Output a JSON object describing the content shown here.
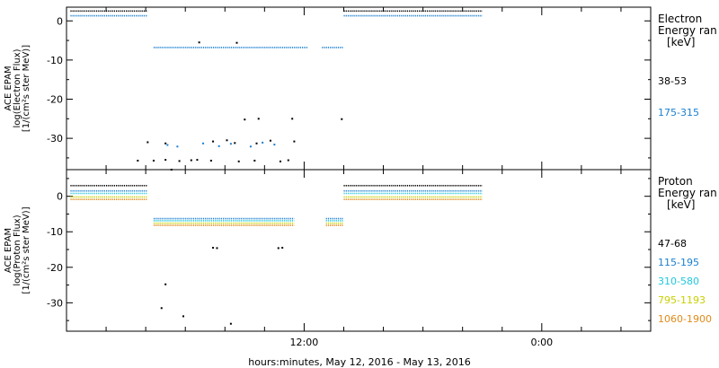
{
  "figure": {
    "xlabel": "hours:minutes, May 12, 2016 - May 13, 2016",
    "xticks": [
      {
        "label": "12:00",
        "hour": 12
      },
      {
        "label": "0:00",
        "hour": 24
      }
    ],
    "x_range_hours": [
      0,
      29.5
    ],
    "minor_tick_every_hours": 2
  },
  "chart_data": [
    {
      "type": "scatter",
      "ylabel": [
        "ACE EPAM",
        "log(Electron Flux)",
        "[1/(cm²s ster MeV)]"
      ],
      "ylim": [
        -38,
        3.5
      ],
      "yticks": [
        0,
        -10,
        -20,
        -30
      ],
      "legend": {
        "title": [
          "Electron",
          "Energy ran",
          "[keV]"
        ],
        "entries": [
          {
            "label": "38-53",
            "color": "#000000"
          },
          {
            "label": "175-315",
            "color": "#1a7fd0"
          }
        ]
      },
      "series": [
        {
          "name": "38-53",
          "color": "#000000",
          "segments": [
            {
              "x": [
                0.2,
                4.1
              ],
              "y": 2.5
            },
            {
              "x": [
                14.0,
                21.0
              ],
              "y": 2.5
            }
          ],
          "points": [
            {
              "x": 3.6,
              "y": -35.7
            },
            {
              "x": 4.4,
              "y": -35.7
            },
            {
              "x": 5.0,
              "y": -35.5
            },
            {
              "x": 5.7,
              "y": -35.8
            },
            {
              "x": 6.3,
              "y": -35.6
            },
            {
              "x": 6.6,
              "y": -35.5
            },
            {
              "x": 7.3,
              "y": -35.7
            },
            {
              "x": 8.7,
              "y": -35.9
            },
            {
              "x": 9.5,
              "y": -35.7
            },
            {
              "x": 10.8,
              "y": -35.9
            },
            {
              "x": 11.2,
              "y": -35.6
            },
            {
              "x": 4.1,
              "y": -31.0
            },
            {
              "x": 5.0,
              "y": -31.3
            },
            {
              "x": 7.4,
              "y": -30.8
            },
            {
              "x": 8.1,
              "y": -30.5
            },
            {
              "x": 8.5,
              "y": -31.2
            },
            {
              "x": 9.6,
              "y": -31.3
            },
            {
              "x": 10.3,
              "y": -30.6
            },
            {
              "x": 11.5,
              "y": -30.8
            },
            {
              "x": 9.0,
              "y": -25.2
            },
            {
              "x": 9.7,
              "y": -25.0
            },
            {
              "x": 11.4,
              "y": -25.0
            },
            {
              "x": 13.9,
              "y": -25.1
            },
            {
              "x": 6.7,
              "y": -5.5
            },
            {
              "x": 8.6,
              "y": -5.6
            }
          ]
        },
        {
          "name": "175-315",
          "color": "#1a7fd0",
          "segments": [
            {
              "x": [
                0.2,
                4.1
              ],
              "y": 1.3
            },
            {
              "x": [
                14.0,
                21.0
              ],
              "y": 1.3
            },
            {
              "x": [
                4.4,
                12.2
              ],
              "y": -6.8
            },
            {
              "x": [
                12.9,
                14.0
              ],
              "y": -6.8
            }
          ],
          "points": [
            {
              "x": 5.1,
              "y": -31.7
            },
            {
              "x": 5.6,
              "y": -32.1
            },
            {
              "x": 6.9,
              "y": -31.3
            },
            {
              "x": 7.7,
              "y": -32.0
            },
            {
              "x": 8.3,
              "y": -31.4
            },
            {
              "x": 9.3,
              "y": -32.1
            },
            {
              "x": 9.9,
              "y": -31.1
            },
            {
              "x": 10.5,
              "y": -31.6
            }
          ]
        }
      ]
    },
    {
      "type": "scatter",
      "ylabel": [
        "ACE EPAM",
        "log(Proton Flux)",
        "[1/(cm²s ster MeV)]"
      ],
      "ylim": [
        -38,
        7.5
      ],
      "yticks": [
        0,
        -10,
        -20,
        -30
      ],
      "legend": {
        "title": [
          "Proton",
          "Energy ran",
          "[keV]"
        ],
        "entries": [
          {
            "label": "47-68",
            "color": "#000000"
          },
          {
            "label": "115-195",
            "color": "#1a7fd0"
          },
          {
            "label": "310-580",
            "color": "#20c8dc"
          },
          {
            "label": "795-1193",
            "color": "#c8d000"
          },
          {
            "label": "1060-1900",
            "color": "#e08a1a"
          }
        ]
      },
      "series": [
        {
          "name": "47-68",
          "color": "#000000",
          "segments": [
            {
              "x": [
                0.2,
                4.1
              ],
              "y": 3.0
            },
            {
              "x": [
                14.0,
                21.0
              ],
              "y": 3.0
            }
          ],
          "points": [
            {
              "x": 5.3,
              "y": 7.5
            },
            {
              "x": 7.4,
              "y": -14.5
            },
            {
              "x": 7.6,
              "y": -14.6
            },
            {
              "x": 10.7,
              "y": -14.6
            },
            {
              "x": 10.9,
              "y": -14.5
            },
            {
              "x": 5.0,
              "y": -24.8
            },
            {
              "x": 4.8,
              "y": -31.5
            },
            {
              "x": 5.9,
              "y": -33.8
            },
            {
              "x": 8.3,
              "y": -35.9
            }
          ]
        },
        {
          "name": "115-195",
          "color": "#1a7fd0",
          "segments": [
            {
              "x": [
                0.2,
                4.1
              ],
              "y": 1.5
            },
            {
              "x": [
                14.0,
                21.0
              ],
              "y": 1.5
            },
            {
              "x": [
                4.4,
                11.5
              ],
              "y": -6.3
            },
            {
              "x": [
                13.1,
                14.0
              ],
              "y": -6.3
            }
          ]
        },
        {
          "name": "310-580",
          "color": "#20c8dc",
          "segments": [
            {
              "x": [
                0.2,
                4.1
              ],
              "y": 0.8
            },
            {
              "x": [
                14.0,
                21.0
              ],
              "y": 0.8
            },
            {
              "x": [
                4.4,
                11.5
              ],
              "y": -6.9
            },
            {
              "x": [
                13.1,
                14.0
              ],
              "y": -6.9
            }
          ]
        },
        {
          "name": "795-1193",
          "color": "#c8d000",
          "segments": [
            {
              "x": [
                0.2,
                4.1
              ],
              "y": -0.2
            },
            {
              "x": [
                14.0,
                21.0
              ],
              "y": -0.2
            },
            {
              "x": [
                4.4,
                11.5
              ],
              "y": -7.6
            },
            {
              "x": [
                13.1,
                14.0
              ],
              "y": -7.6
            }
          ]
        },
        {
          "name": "1060-1900",
          "color": "#e08a1a",
          "segments": [
            {
              "x": [
                0.2,
                4.1
              ],
              "y": -0.9
            },
            {
              "x": [
                14.0,
                21.0
              ],
              "y": -0.9
            },
            {
              "x": [
                4.4,
                11.5
              ],
              "y": -8.2
            },
            {
              "x": [
                13.1,
                14.0
              ],
              "y": -8.2
            }
          ]
        }
      ]
    }
  ]
}
